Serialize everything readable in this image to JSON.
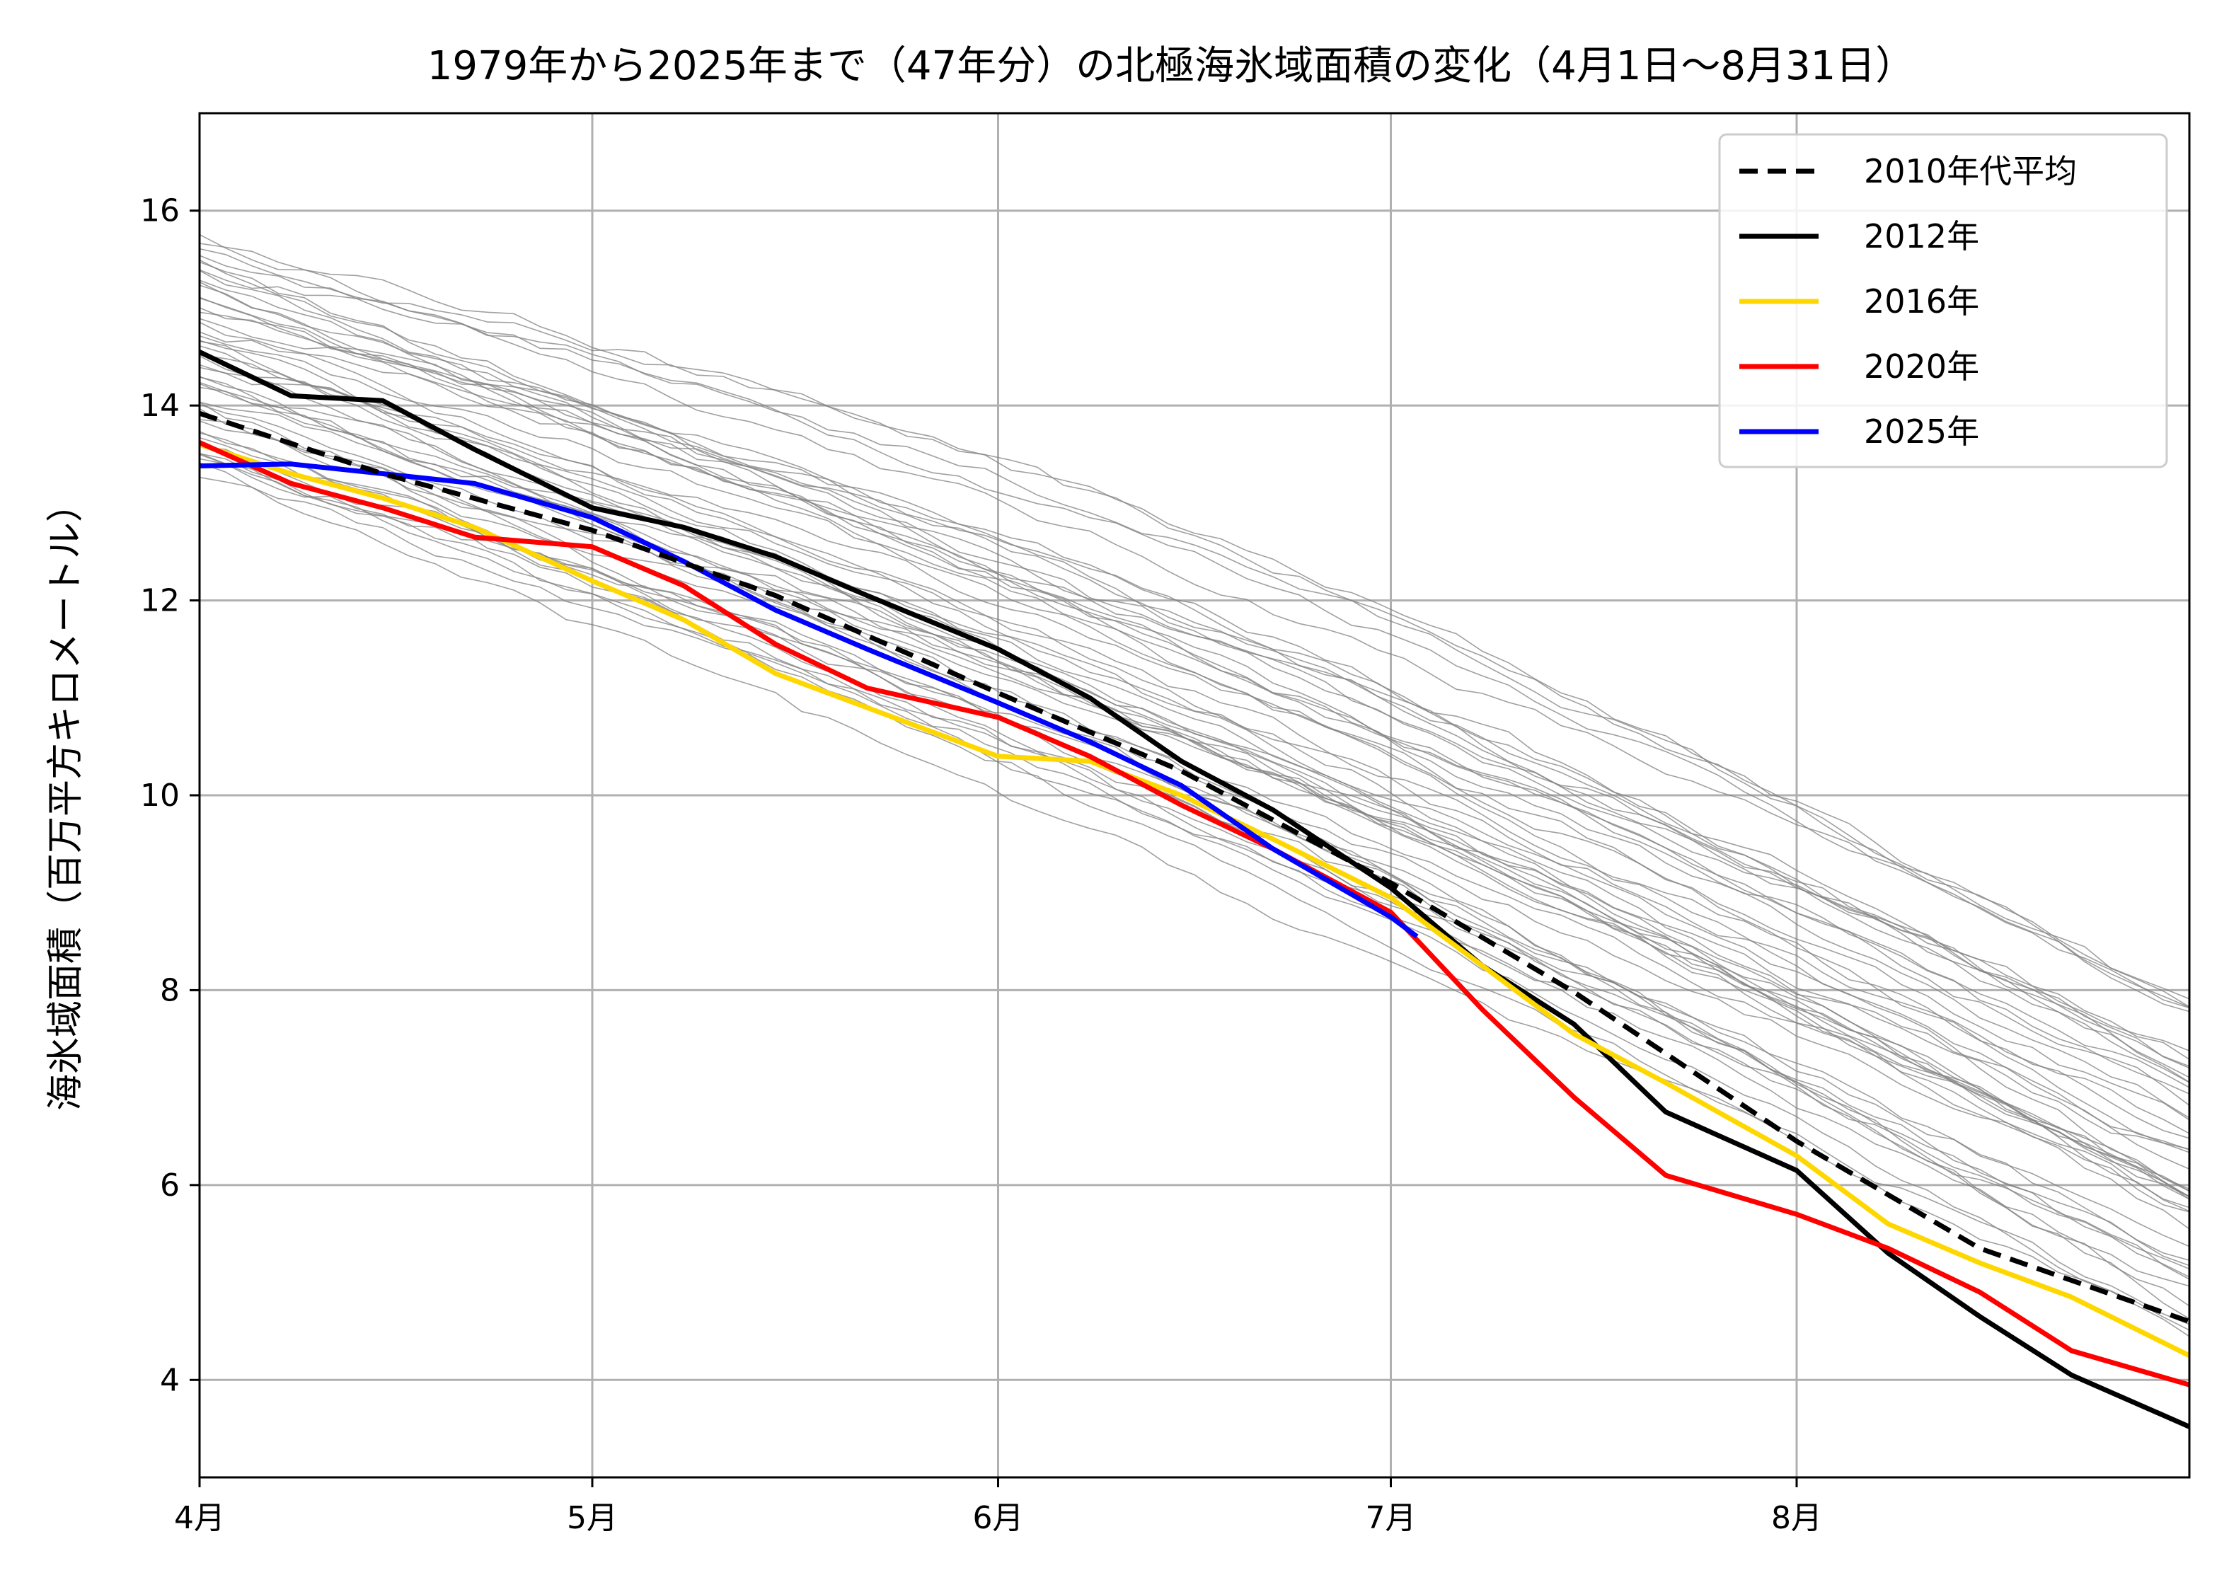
{
  "chart_data": {
    "type": "line",
    "title": "1979年から2025年まで（47年分）の北極海氷域面積の変化（4月1日〜8月31日）",
    "xlabel": "",
    "ylabel": "海氷域面積（百万平方キロメートル）",
    "xlim": [
      "4月1日",
      "8月31日"
    ],
    "ylim": [
      3,
      17
    ],
    "grid": true,
    "legend_position": "top-right",
    "x_ticks": [
      "4月",
      "5月",
      "6月",
      "7月",
      "8月"
    ],
    "y_ticks": [
      4,
      6,
      8,
      10,
      12,
      14,
      16
    ],
    "background_series": {
      "description_label": "",
      "color": "#808080",
      "count": 47,
      "start_range": [
        13.3,
        15.7
      ],
      "end_range": [
        4.5,
        7.8
      ]
    },
    "series": [
      {
        "name": "2010年代平均",
        "color": "#000000",
        "dash": true,
        "x": [
          "4月1日",
          "4月15日",
          "5月1日",
          "5月15日",
          "6月1日",
          "6月15日",
          "7月1日",
          "7月15日",
          "8月1日",
          "8月15日",
          "8月31日"
        ],
        "values": [
          13.92,
          13.3,
          12.72,
          12.05,
          11.05,
          10.25,
          9.1,
          7.98,
          6.45,
          5.35,
          4.6
        ]
      },
      {
        "name": "2012年",
        "color": "#000000",
        "dash": false,
        "x": [
          "4月1日",
          "4月8日",
          "4月15日",
          "4月22日",
          "5月1日",
          "5月8日",
          "5月15日",
          "5月22日",
          "6月1日",
          "6月8日",
          "6月15日",
          "6月22日",
          "7月1日",
          "7月8日",
          "7月15日",
          "7月22日",
          "8月1日",
          "8月8日",
          "8月15日",
          "8月22日",
          "8月31日"
        ],
        "values": [
          14.55,
          14.1,
          14.05,
          13.55,
          12.95,
          12.75,
          12.45,
          12.05,
          11.5,
          11.0,
          10.35,
          9.85,
          9.05,
          8.25,
          7.65,
          6.75,
          6.15,
          5.3,
          4.65,
          4.05,
          3.52
        ]
      },
      {
        "name": "2016年",
        "color": "#ffd700",
        "dash": false,
        "x": [
          "4月1日",
          "4月8日",
          "4月15日",
          "4月22日",
          "5月1日",
          "5月8日",
          "5月15日",
          "5月22日",
          "6月1日",
          "6月8日",
          "6月15日",
          "6月22日",
          "7月1日",
          "7月8日",
          "7月15日",
          "7月22日",
          "8月1日",
          "8月8日",
          "8月15日",
          "8月22日",
          "8月31日"
        ],
        "values": [
          13.6,
          13.3,
          13.05,
          12.75,
          12.2,
          11.8,
          11.25,
          10.9,
          10.4,
          10.35,
          10.0,
          9.55,
          8.95,
          8.25,
          7.55,
          7.05,
          6.3,
          5.6,
          5.2,
          4.85,
          4.25
        ]
      },
      {
        "name": "2020年",
        "color": "#ff0000",
        "dash": false,
        "x": [
          "4月1日",
          "4月8日",
          "4月15日",
          "4月22日",
          "5月1日",
          "5月8日",
          "5月15日",
          "5月22日",
          "6月1日",
          "6月8日",
          "6月15日",
          "6月22日",
          "7月1日",
          "7月8日",
          "7月15日",
          "7月22日",
          "8月1日",
          "8月8日",
          "8月15日",
          "8月22日",
          "8月31日"
        ],
        "values": [
          13.62,
          13.2,
          12.95,
          12.65,
          12.55,
          12.15,
          11.55,
          11.1,
          10.8,
          10.4,
          9.9,
          9.45,
          8.8,
          7.8,
          6.9,
          6.1,
          5.7,
          5.35,
          4.9,
          4.3,
          3.95
        ]
      },
      {
        "name": "2025年",
        "color": "#0000ff",
        "dash": false,
        "x": [
          "4月1日",
          "4月8日",
          "4月15日",
          "4月22日",
          "5月1日",
          "5月8日",
          "5月15日",
          "5月22日",
          "6月1日",
          "6月8日",
          "6月15日",
          "6月22日",
          "7月1日",
          "7月3日"
        ],
        "values": [
          13.38,
          13.4,
          13.3,
          13.2,
          12.85,
          12.4,
          11.9,
          11.5,
          10.95,
          10.55,
          10.1,
          9.45,
          8.75,
          8.55
        ]
      }
    ]
  }
}
